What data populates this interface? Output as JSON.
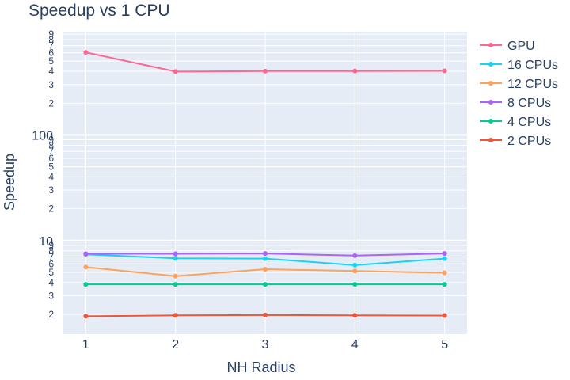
{
  "chart_data": {
    "type": "line",
    "title": "Speedup vs 1 CPU",
    "xlabel": "NH Radius",
    "ylabel": "Speedup",
    "x": [
      1,
      2,
      3,
      4,
      5
    ],
    "y_scale": "log",
    "ylim": [
      1.3,
      950
    ],
    "xlim": [
      0.75,
      5.25
    ],
    "grid": true,
    "legend_position": "right",
    "y_major_ticks": [
      {
        "value": 10,
        "label": "10"
      },
      {
        "value": 100,
        "label": "100"
      }
    ],
    "y_minor_ticks": [
      {
        "value": 2,
        "label": "2"
      },
      {
        "value": 3,
        "label": "3"
      },
      {
        "value": 4,
        "label": "4"
      },
      {
        "value": 5,
        "label": "5"
      },
      {
        "value": 6,
        "label": "6"
      },
      {
        "value": 7,
        "label": "7"
      },
      {
        "value": 8,
        "label": "8"
      },
      {
        "value": 9,
        "label": "9"
      },
      {
        "value": 20,
        "label": "2"
      },
      {
        "value": 30,
        "label": "3"
      },
      {
        "value": 40,
        "label": "4"
      },
      {
        "value": 50,
        "label": "5"
      },
      {
        "value": 60,
        "label": "6"
      },
      {
        "value": 70,
        "label": "7"
      },
      {
        "value": 80,
        "label": "8"
      },
      {
        "value": 90,
        "label": "9"
      },
      {
        "value": 200,
        "label": "2"
      },
      {
        "value": 300,
        "label": "3"
      },
      {
        "value": 400,
        "label": "4"
      },
      {
        "value": 500,
        "label": "5"
      },
      {
        "value": 600,
        "label": "6"
      },
      {
        "value": 700,
        "label": "7"
      },
      {
        "value": 800,
        "label": "8"
      },
      {
        "value": 900,
        "label": "9"
      }
    ],
    "x_ticks": [
      {
        "value": 1,
        "label": "1"
      },
      {
        "value": 2,
        "label": "2"
      },
      {
        "value": 3,
        "label": "3"
      },
      {
        "value": 4,
        "label": "4"
      },
      {
        "value": 5,
        "label": "5"
      }
    ],
    "series": [
      {
        "name": "GPU",
        "color": "#ff6692",
        "values": [
          605,
          398,
          402,
          403,
          404
        ]
      },
      {
        "name": "16 CPUs",
        "color": "#19d3f3",
        "values": [
          7.4,
          6.8,
          6.75,
          5.85,
          6.75
        ]
      },
      {
        "name": "12 CPUs",
        "color": "#ffa15a",
        "values": [
          5.6,
          4.6,
          5.35,
          5.15,
          4.95
        ]
      },
      {
        "name": "8 CPUs",
        "color": "#ab63fa",
        "values": [
          7.5,
          7.5,
          7.55,
          7.2,
          7.55
        ]
      },
      {
        "name": "4 CPUs",
        "color": "#00cc96",
        "values": [
          3.85,
          3.85,
          3.85,
          3.85,
          3.85
        ]
      },
      {
        "name": "2 CPUs",
        "color": "#ef553b",
        "values": [
          1.92,
          1.96,
          1.97,
          1.96,
          1.95
        ]
      }
    ]
  }
}
